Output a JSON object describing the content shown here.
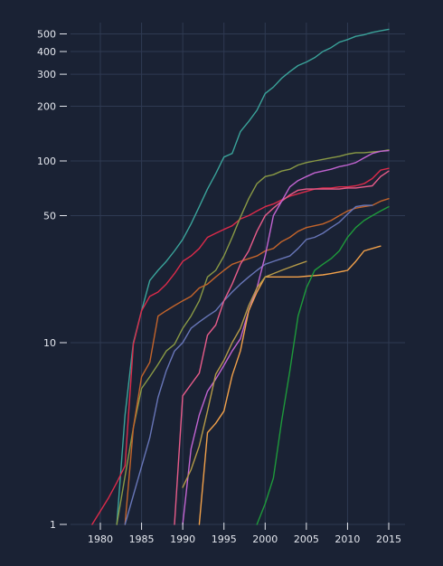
{
  "chart_data": {
    "type": "line",
    "title": "",
    "xlabel": "",
    "ylabel": "",
    "y_scale": "log",
    "xlim": [
      1976,
      2017
    ],
    "ylim": [
      1,
      600
    ],
    "grid": true,
    "legend": "none",
    "x_ticks": [
      1980,
      1985,
      1990,
      1995,
      2000,
      2005,
      2010,
      2015
    ],
    "y_ticks": [
      1,
      10,
      50,
      100,
      200,
      300,
      400,
      500
    ],
    "series": [
      {
        "color": "#3aa39a",
        "points": [
          [
            1982,
            1
          ],
          [
            1983,
            4
          ],
          [
            1984,
            10
          ],
          [
            1985,
            15
          ],
          [
            1986,
            22
          ],
          [
            1987,
            25
          ],
          [
            1988,
            28
          ],
          [
            1989,
            32
          ],
          [
            1990,
            37
          ],
          [
            1991,
            45
          ],
          [
            1992,
            56
          ],
          [
            1993,
            70
          ],
          [
            1994,
            85
          ],
          [
            1995,
            105
          ],
          [
            1996,
            110
          ],
          [
            1997,
            145
          ],
          [
            1998,
            165
          ],
          [
            1999,
            190
          ],
          [
            2000,
            235
          ],
          [
            2001,
            255
          ],
          [
            2002,
            285
          ],
          [
            2003,
            310
          ],
          [
            2004,
            335
          ],
          [
            2005,
            350
          ],
          [
            2006,
            370
          ],
          [
            2007,
            400
          ],
          [
            2008,
            420
          ],
          [
            2009,
            450
          ],
          [
            2010,
            465
          ],
          [
            2011,
            485
          ],
          [
            2012,
            495
          ],
          [
            2013,
            510
          ],
          [
            2014,
            520
          ],
          [
            2015,
            530
          ]
        ]
      },
      {
        "color": "#dc2b4a",
        "points": [
          [
            1979,
            1
          ],
          [
            1981,
            1.4
          ],
          [
            1982,
            1.7
          ],
          [
            1983,
            2.1
          ],
          [
            1984,
            9.8
          ],
          [
            1985,
            15
          ],
          [
            1986,
            18
          ],
          [
            1987,
            19
          ],
          [
            1988,
            21
          ],
          [
            1989,
            24
          ],
          [
            1990,
            28
          ],
          [
            1991,
            30
          ],
          [
            1992,
            33
          ],
          [
            1993,
            38
          ],
          [
            1994,
            40
          ],
          [
            1995,
            42
          ],
          [
            1996,
            44
          ],
          [
            1997,
            48
          ],
          [
            1998,
            50
          ],
          [
            1999,
            53
          ],
          [
            2000,
            56
          ],
          [
            2001,
            58
          ],
          [
            2002,
            61
          ],
          [
            2003,
            64
          ],
          [
            2004,
            66
          ],
          [
            2005,
            68
          ],
          [
            2006,
            70
          ],
          [
            2007,
            71
          ],
          [
            2008,
            71
          ],
          [
            2009,
            72
          ],
          [
            2010,
            72
          ],
          [
            2011,
            73
          ],
          [
            2012,
            75
          ],
          [
            2013,
            80
          ],
          [
            2014,
            89
          ],
          [
            2015,
            91
          ]
        ]
      },
      {
        "color": "#8a9a45",
        "points": [
          [
            1982,
            1
          ],
          [
            1984,
            3.4
          ],
          [
            1985,
            5.6
          ],
          [
            1986,
            6.5
          ],
          [
            1987,
            7.6
          ],
          [
            1988,
            9
          ],
          [
            1989,
            9.8
          ],
          [
            1990,
            12
          ],
          [
            1991,
            14
          ],
          [
            1992,
            17
          ],
          [
            1993,
            23
          ],
          [
            1994,
            25
          ],
          [
            1995,
            30
          ],
          [
            1996,
            38
          ],
          [
            1997,
            49
          ],
          [
            1998,
            62
          ],
          [
            1999,
            75
          ],
          [
            2000,
            82
          ],
          [
            2001,
            84
          ],
          [
            2002,
            88
          ],
          [
            2003,
            90
          ],
          [
            2004,
            95
          ],
          [
            2005,
            98
          ],
          [
            2006,
            100
          ],
          [
            2007,
            102
          ],
          [
            2008,
            104
          ],
          [
            2009,
            106
          ],
          [
            2010,
            109
          ],
          [
            2011,
            111
          ],
          [
            2012,
            111
          ],
          [
            2013,
            112
          ],
          [
            2014,
            113
          ],
          [
            2015,
            115
          ]
        ]
      },
      {
        "color": "#c3642b",
        "points": [
          [
            1983,
            1
          ],
          [
            1984,
            3.4
          ],
          [
            1985,
            6.5
          ],
          [
            1986,
            7.8
          ],
          [
            1987,
            14
          ],
          [
            1988,
            15
          ],
          [
            1989,
            16
          ],
          [
            1990,
            17
          ],
          [
            1991,
            18
          ],
          [
            1992,
            20
          ],
          [
            1993,
            21
          ],
          [
            1994,
            23
          ],
          [
            1995,
            25
          ],
          [
            1996,
            27
          ],
          [
            1997,
            28
          ],
          [
            1998,
            29
          ],
          [
            1999,
            30
          ],
          [
            2000,
            32
          ],
          [
            2001,
            33
          ],
          [
            2002,
            36
          ],
          [
            2003,
            38
          ],
          [
            2004,
            41
          ],
          [
            2005,
            43
          ],
          [
            2006,
            44
          ],
          [
            2007,
            45
          ],
          [
            2008,
            47
          ],
          [
            2009,
            50
          ],
          [
            2010,
            53
          ],
          [
            2011,
            55
          ],
          [
            2012,
            56
          ],
          [
            2013,
            57
          ],
          [
            2014,
            60
          ],
          [
            2015,
            62
          ]
        ]
      },
      {
        "color": "#6876b8",
        "points": [
          [
            1983,
            1
          ],
          [
            1986,
            3
          ],
          [
            1987,
            5
          ],
          [
            1988,
            7
          ],
          [
            1989,
            9
          ],
          [
            1990,
            10
          ],
          [
            1991,
            12
          ],
          [
            1992,
            13
          ],
          [
            1993,
            14
          ],
          [
            1994,
            15
          ],
          [
            1995,
            17
          ],
          [
            1996,
            19
          ],
          [
            1997,
            21
          ],
          [
            1998,
            23
          ],
          [
            1999,
            25
          ],
          [
            2000,
            27
          ],
          [
            2001,
            28
          ],
          [
            2002,
            29
          ],
          [
            2003,
            30
          ],
          [
            2004,
            33
          ],
          [
            2005,
            37
          ],
          [
            2006,
            38
          ],
          [
            2007,
            40
          ],
          [
            2008,
            43
          ],
          [
            2009,
            46
          ],
          [
            2010,
            51
          ],
          [
            2011,
            56
          ],
          [
            2012,
            57
          ],
          [
            2013,
            57
          ]
        ]
      },
      {
        "color": "#e85c8a",
        "points": [
          [
            1989,
            1
          ],
          [
            1990,
            5.1
          ],
          [
            1991,
            5.9
          ],
          [
            1992,
            6.8
          ],
          [
            1993,
            11
          ],
          [
            1994,
            12.5
          ],
          [
            1995,
            17
          ],
          [
            1996,
            21
          ],
          [
            1997,
            27
          ],
          [
            1998,
            32
          ],
          [
            1999,
            41
          ],
          [
            2000,
            50
          ],
          [
            2001,
            55
          ],
          [
            2002,
            60
          ],
          [
            2003,
            65
          ],
          [
            2004,
            69
          ],
          [
            2005,
            70
          ],
          [
            2006,
            70
          ],
          [
            2007,
            70
          ],
          [
            2008,
            70
          ],
          [
            2009,
            70
          ],
          [
            2010,
            71
          ],
          [
            2011,
            71
          ],
          [
            2012,
            72
          ],
          [
            2013,
            73
          ],
          [
            2014,
            82
          ],
          [
            2015,
            88
          ]
        ]
      },
      {
        "color": "#c264d1",
        "points": [
          [
            1990,
            1
          ],
          [
            1991,
            2.6
          ],
          [
            1992,
            4
          ],
          [
            1993,
            5.4
          ],
          [
            1994,
            6.3
          ],
          [
            1995,
            7.5
          ],
          [
            1996,
            9
          ],
          [
            1997,
            10.5
          ],
          [
            1998,
            15
          ],
          [
            1999,
            20
          ],
          [
            2000,
            30
          ],
          [
            2001,
            50
          ],
          [
            2002,
            60
          ],
          [
            2003,
            72
          ],
          [
            2004,
            78
          ],
          [
            2005,
            82
          ],
          [
            2006,
            86
          ],
          [
            2007,
            88
          ],
          [
            2008,
            90
          ],
          [
            2009,
            93
          ],
          [
            2010,
            95
          ],
          [
            2011,
            98
          ],
          [
            2012,
            104
          ],
          [
            2013,
            110
          ],
          [
            2014,
            113
          ],
          [
            2015,
            114
          ]
        ]
      },
      {
        "color": "#f2a14a",
        "points": [
          [
            1992,
            1
          ],
          [
            1993,
            3.2
          ],
          [
            1994,
            3.6
          ],
          [
            1995,
            4.2
          ],
          [
            1996,
            6.6
          ],
          [
            1997,
            9
          ],
          [
            1998,
            15
          ],
          [
            1999,
            19
          ],
          [
            2000,
            23
          ],
          [
            2001,
            23
          ],
          [
            2002,
            23
          ],
          [
            2003,
            23
          ],
          [
            2004,
            23
          ],
          [
            2005,
            23.2
          ],
          [
            2006,
            23.4
          ],
          [
            2007,
            23.6
          ],
          [
            2008,
            24
          ],
          [
            2009,
            24.5
          ],
          [
            2010,
            25
          ],
          [
            2011,
            28
          ],
          [
            2012,
            32
          ],
          [
            2013,
            33
          ],
          [
            2014,
            34
          ]
        ]
      },
      {
        "color": "#b59a48",
        "points": [
          [
            1990,
            1.6
          ],
          [
            1991,
            2
          ],
          [
            1992,
            2.7
          ],
          [
            1993,
            4.2
          ],
          [
            1994,
            6.7
          ],
          [
            1995,
            8
          ],
          [
            1996,
            10
          ],
          [
            1997,
            12
          ],
          [
            1998,
            16
          ],
          [
            1999,
            20
          ],
          [
            2000,
            23
          ],
          [
            2001,
            24
          ],
          [
            2002,
            25
          ],
          [
            2003,
            26
          ],
          [
            2004,
            27
          ],
          [
            2005,
            28
          ]
        ]
      },
      {
        "color": "#1e9a3b",
        "points": [
          [
            1999,
            1
          ],
          [
            2000,
            1.3
          ],
          [
            2001,
            1.8
          ],
          [
            2002,
            3.7
          ],
          [
            2003,
            7
          ],
          [
            2004,
            14
          ],
          [
            2005,
            20
          ],
          [
            2006,
            25
          ],
          [
            2007,
            27
          ],
          [
            2008,
            29
          ],
          [
            2009,
            32
          ],
          [
            2010,
            38
          ],
          [
            2011,
            43
          ],
          [
            2012,
            47
          ],
          [
            2013,
            50
          ],
          [
            2014,
            53
          ],
          [
            2015,
            56
          ]
        ]
      }
    ]
  }
}
